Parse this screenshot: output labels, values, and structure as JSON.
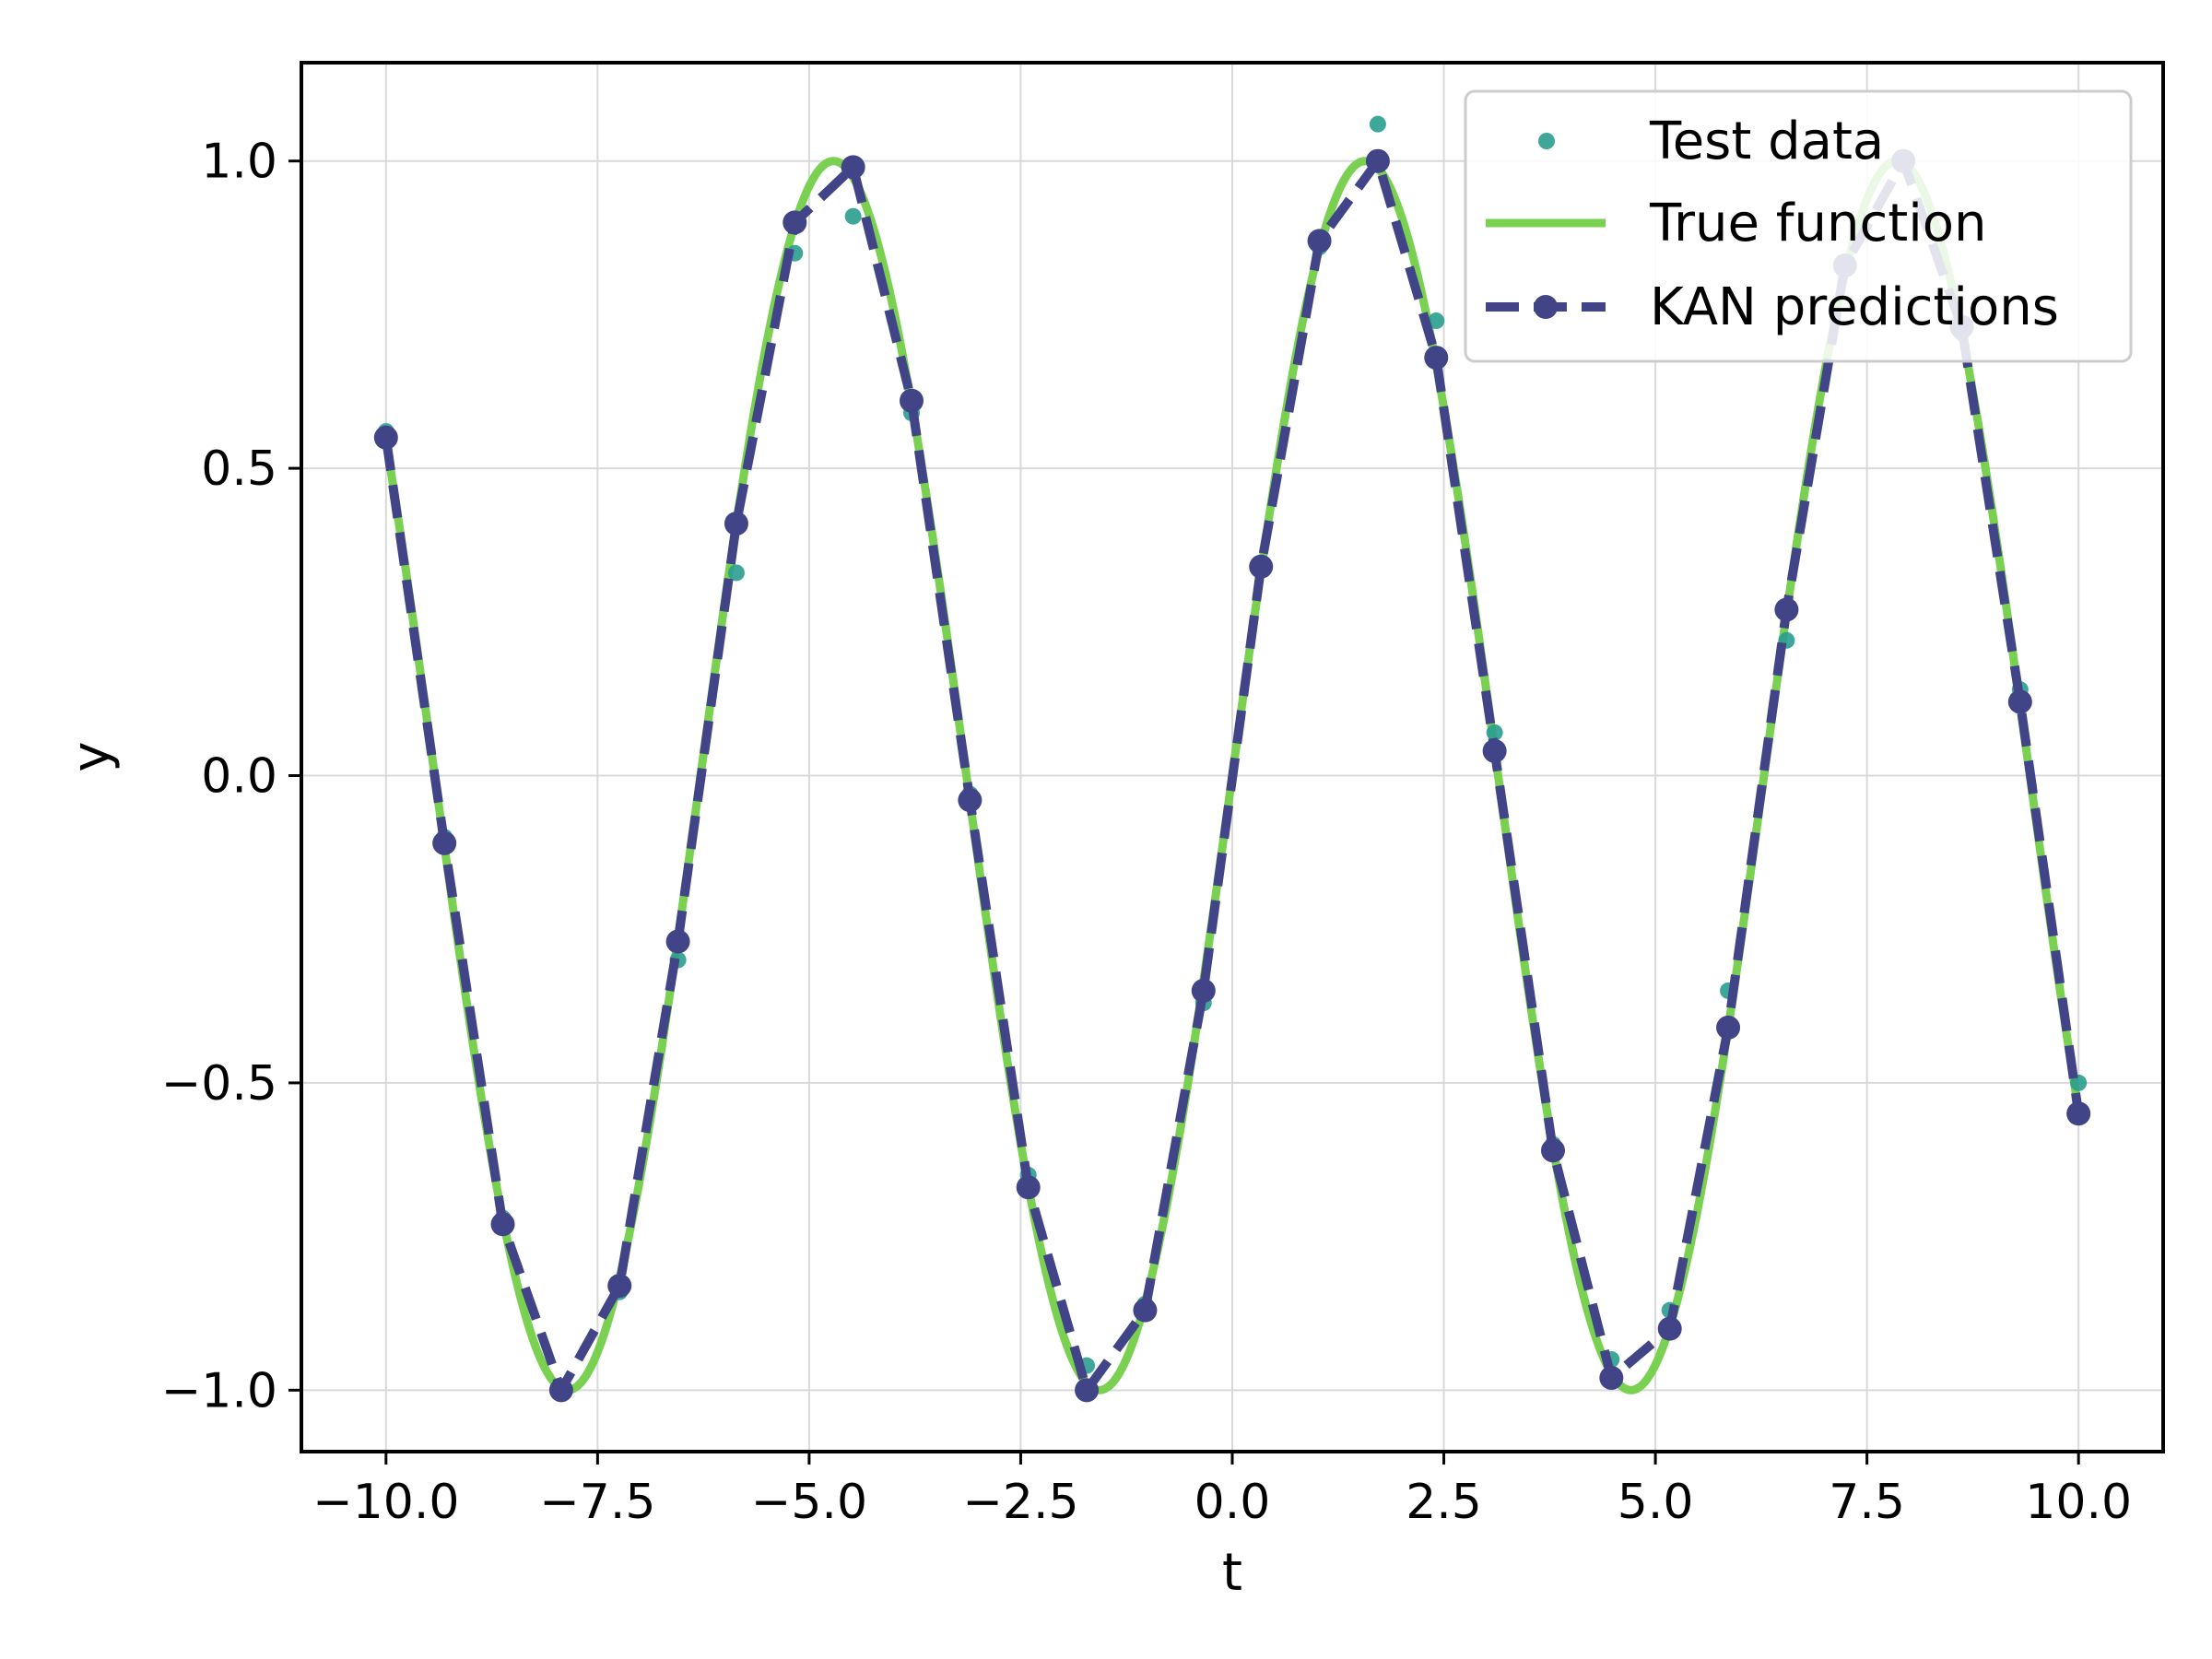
{
  "chart_data": {
    "type": "line",
    "xlabel": "t",
    "ylabel": "y",
    "xlim": [
      -11.0,
      11.0
    ],
    "ylim": [
      -1.1,
      1.16
    ],
    "grid": true,
    "legend_position": "top-right",
    "x_ticks": [
      -10.0,
      -7.5,
      -5.0,
      -2.5,
      0.0,
      2.5,
      5.0,
      7.5,
      10.0
    ],
    "x_tick_labels": [
      "−10.0",
      "−7.5",
      "−5.0",
      "−2.5",
      "0.0",
      "2.5",
      "5.0",
      "7.5",
      "10.0"
    ],
    "y_ticks": [
      -1.0,
      -0.5,
      0.0,
      0.5,
      1.0
    ],
    "y_tick_labels": [
      "−1.0",
      "−0.5",
      "0.0",
      "0.5",
      "1.0"
    ],
    "colors": {
      "test_data": "#2a9d8f",
      "true_function": "#7ad151",
      "kan_predictions": "#414487",
      "grid": "#d9d9d9",
      "frame": "#000000"
    },
    "series": [
      {
        "name": "Test data",
        "kind": "scatter",
        "x": [
          -10.0,
          -9.31,
          -8.62,
          -7.93,
          -7.24,
          -6.55,
          -5.86,
          -5.17,
          -4.48,
          -3.79,
          -3.1,
          -2.41,
          -1.72,
          -1.03,
          -0.34,
          0.34,
          1.03,
          1.72,
          2.41,
          3.1,
          3.79,
          4.48,
          5.17,
          5.86,
          6.55,
          7.24,
          7.93,
          8.62,
          9.31,
          10.0
        ],
        "y": [
          0.56,
          -0.1,
          -0.72,
          -1.0,
          -0.84,
          -0.3,
          0.33,
          0.85,
          0.91,
          0.59,
          -0.03,
          -0.65,
          -0.96,
          -0.86,
          -0.37,
          0.34,
          0.86,
          1.06,
          0.74,
          0.07,
          -0.6,
          -0.95,
          -0.87,
          -0.35,
          0.22,
          0.83,
          1.0,
          0.72,
          0.14,
          -0.5
        ]
      },
      {
        "name": "True function",
        "kind": "line",
        "function": "sin(t)"
      },
      {
        "name": "KAN predictions",
        "kind": "line-markers",
        "x": [
          -10.0,
          -9.31,
          -8.62,
          -7.93,
          -7.24,
          -6.55,
          -5.86,
          -5.17,
          -4.48,
          -3.79,
          -3.1,
          -2.41,
          -1.72,
          -1.03,
          -0.34,
          0.34,
          1.03,
          1.72,
          2.41,
          3.1,
          3.79,
          4.48,
          5.17,
          5.86,
          6.55,
          7.24,
          7.93,
          8.62,
          9.31,
          10.0
        ],
        "y": [
          0.55,
          -0.11,
          -0.73,
          -1.0,
          -0.83,
          -0.27,
          0.41,
          0.9,
          0.99,
          0.61,
          -0.04,
          -0.67,
          -1.0,
          -0.87,
          -0.35,
          0.34,
          0.87,
          1.0,
          0.68,
          0.04,
          -0.61,
          -0.98,
          -0.9,
          -0.41,
          0.27,
          0.83,
          1.0,
          0.73,
          0.12,
          -0.55
        ]
      }
    ]
  }
}
